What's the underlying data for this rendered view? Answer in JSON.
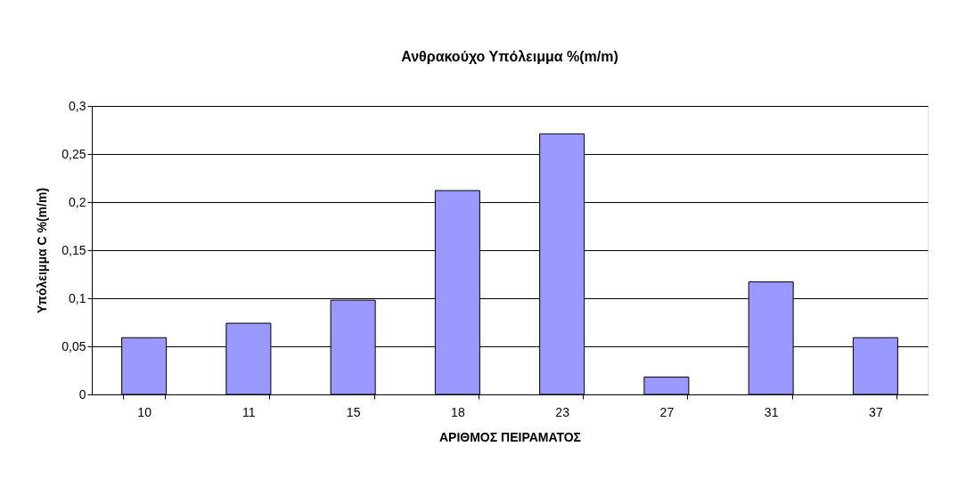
{
  "chart_data": {
    "type": "bar",
    "title": "Ανθρακούχο Υπόλειμμα %(m/m)",
    "xlabel": "ΑΡΙΘΜΟΣ ΠΕΙΡΑΜΑΤΟΣ",
    "ylabel": "Υπόλειμμα C %(m/m)",
    "categories": [
      "10",
      "11",
      "15",
      "18",
      "23",
      "27",
      "31",
      "37"
    ],
    "values": [
      0.059,
      0.074,
      0.098,
      0.212,
      0.271,
      0.018,
      0.117,
      0.059
    ],
    "color": "#9999ff",
    "ylim": [
      0,
      0.3
    ],
    "yticks": [
      0,
      {
        "value": 0.05,
        "label": "0,05"
      },
      {
        "value": 0.1,
        "label": "0,1"
      },
      {
        "value": 0.15,
        "label": "0,15"
      },
      {
        "value": 0.2,
        "label": "0,2"
      },
      {
        "value": 0.25,
        "label": "0,25"
      },
      {
        "value": 0.3,
        "label": "0,3"
      }
    ],
    "grid": "y"
  }
}
